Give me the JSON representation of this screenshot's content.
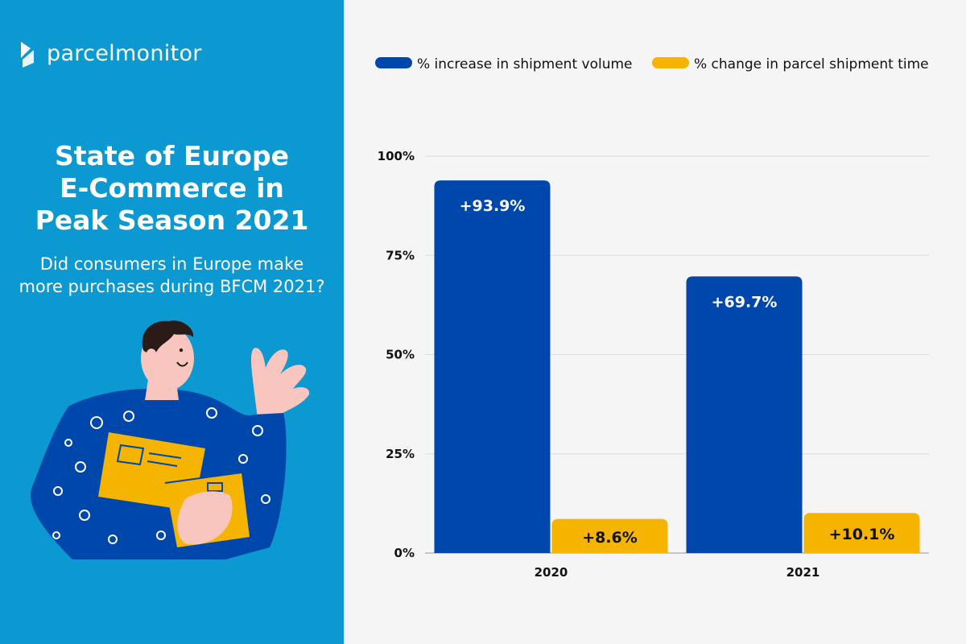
{
  "brand": {
    "logo_text": "parcelmonitor"
  },
  "title_lines": [
    "State of Europe",
    "E-Commerce in",
    "Peak Season 2021"
  ],
  "subtitle_lines": [
    "Did consumers in Europe make",
    "more purchases during BFCM 2021?"
  ],
  "colors": {
    "left_panel": "#0c98d0",
    "volume_series": "#0047ab",
    "time_series": "#f5b400",
    "chart_background": "#f5f5f5"
  },
  "chart_data": {
    "type": "bar",
    "categories": [
      "2020",
      "2021"
    ],
    "series": [
      {
        "name": "% increase in shipment volume",
        "values": [
          93.9,
          69.7
        ],
        "labels": [
          "+93.9%",
          "+69.7%"
        ],
        "color": "#0047ab",
        "label_color": "#ffffff"
      },
      {
        "name": "% change in parcel shipment time",
        "values": [
          8.6,
          10.1
        ],
        "labels": [
          "+8.6%",
          "+10.1%"
        ],
        "color": "#f5b400",
        "label_color": "#111111"
      }
    ],
    "yticks": [
      "0%",
      "25%",
      "50%",
      "75%",
      "100%"
    ],
    "ylim": [
      0,
      100
    ],
    "grid": true,
    "legend_position": "top"
  }
}
